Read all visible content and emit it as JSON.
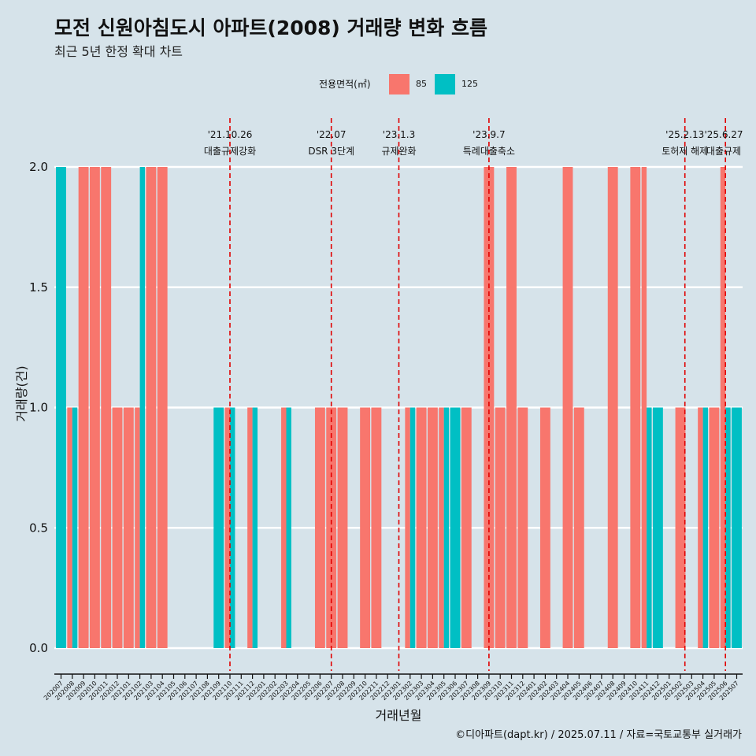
{
  "title": "모전 신원아침도시 아파트(2008) 거래량 변화 흐름",
  "subtitle": "최근 5년 한정 확대 차트",
  "legend": {
    "title": "전용면적(㎡)",
    "items": [
      {
        "label": "85",
        "color": "#f8766d"
      },
      {
        "label": "125",
        "color": "#00bfc4"
      }
    ]
  },
  "caption": "©디아파트(dapt.kr) / 2025.07.11 / 자료=국토교통부 실거래가",
  "chart_data": {
    "type": "bar",
    "title": "모전 신원아침도시 아파트(2008) 거래량 변화 흐름",
    "subtitle": "최근 5년 한정 확대 차트",
    "xlabel": "거래년월",
    "ylabel": "거래량(건)",
    "ylim": [
      0,
      2
    ],
    "yticks": [
      "0.0",
      "0.5",
      "1.0",
      "1.5",
      "2.0"
    ],
    "grid": "horizontal",
    "legend_position": "top",
    "categories": [
      "202007",
      "202008",
      "202009",
      "202010",
      "202011",
      "202012",
      "202101",
      "202102",
      "202103",
      "202104",
      "202105",
      "202106",
      "202107",
      "202108",
      "202109",
      "202110",
      "202111",
      "202112",
      "202201",
      "202202",
      "202203",
      "202204",
      "202205",
      "202206",
      "202207",
      "202208",
      "202209",
      "202210",
      "202211",
      "202212",
      "202301",
      "202302",
      "202303",
      "202304",
      "202305",
      "202306",
      "202307",
      "202308",
      "202309",
      "202310",
      "202311",
      "202312",
      "202401",
      "202402",
      "202403",
      "202404",
      "202405",
      "202406",
      "202407",
      "202408",
      "202409",
      "202410",
      "202411",
      "202412",
      "202501",
      "202502",
      "202503",
      "202504",
      "202505",
      "202506",
      "202507"
    ],
    "series": [
      {
        "name": "85",
        "color": "#f8766d",
        "values": [
          0,
          1,
          2,
          2,
          2,
          1,
          1,
          1,
          2,
          2,
          0,
          0,
          0,
          0,
          0,
          1,
          0,
          1,
          0,
          0,
          1,
          0,
          0,
          1,
          1,
          1,
          0,
          1,
          1,
          0,
          0,
          1,
          1,
          1,
          1,
          0,
          1,
          0,
          2,
          1,
          2,
          1,
          0,
          1,
          0,
          2,
          1,
          0,
          0,
          2,
          0,
          2,
          2,
          0,
          0,
          1,
          0,
          1,
          1,
          2,
          0
        ]
      },
      {
        "name": "125",
        "color": "#00bfc4",
        "values": [
          2,
          1,
          0,
          0,
          0,
          0,
          0,
          2,
          0,
          0,
          0,
          0,
          0,
          0,
          1,
          1,
          0,
          1,
          0,
          0,
          1,
          0,
          0,
          0,
          0,
          0,
          0,
          0,
          0,
          0,
          0,
          1,
          0,
          0,
          1,
          1,
          0,
          0,
          0,
          0,
          0,
          0,
          0,
          0,
          0,
          0,
          0,
          0,
          0,
          0,
          0,
          0,
          1,
          1,
          0,
          0,
          0,
          1,
          0,
          1,
          1
        ]
      }
    ],
    "events": [
      {
        "date": "'21.10.26",
        "label": "대출규제강화",
        "at": "202110"
      },
      {
        "date": "'22.07",
        "label": "DSR 3단계",
        "at": "202207"
      },
      {
        "date": "'23.1.3",
        "label": "규제완화",
        "at": "202301"
      },
      {
        "date": "'23.9.7",
        "label": "특례대출축소",
        "at": "202309"
      },
      {
        "date": "'25.2.13",
        "label": "토허제 해제",
        "at": "202502"
      },
      {
        "date": "'25.6.27",
        "label": "대출규제",
        "at": "202506"
      }
    ]
  }
}
